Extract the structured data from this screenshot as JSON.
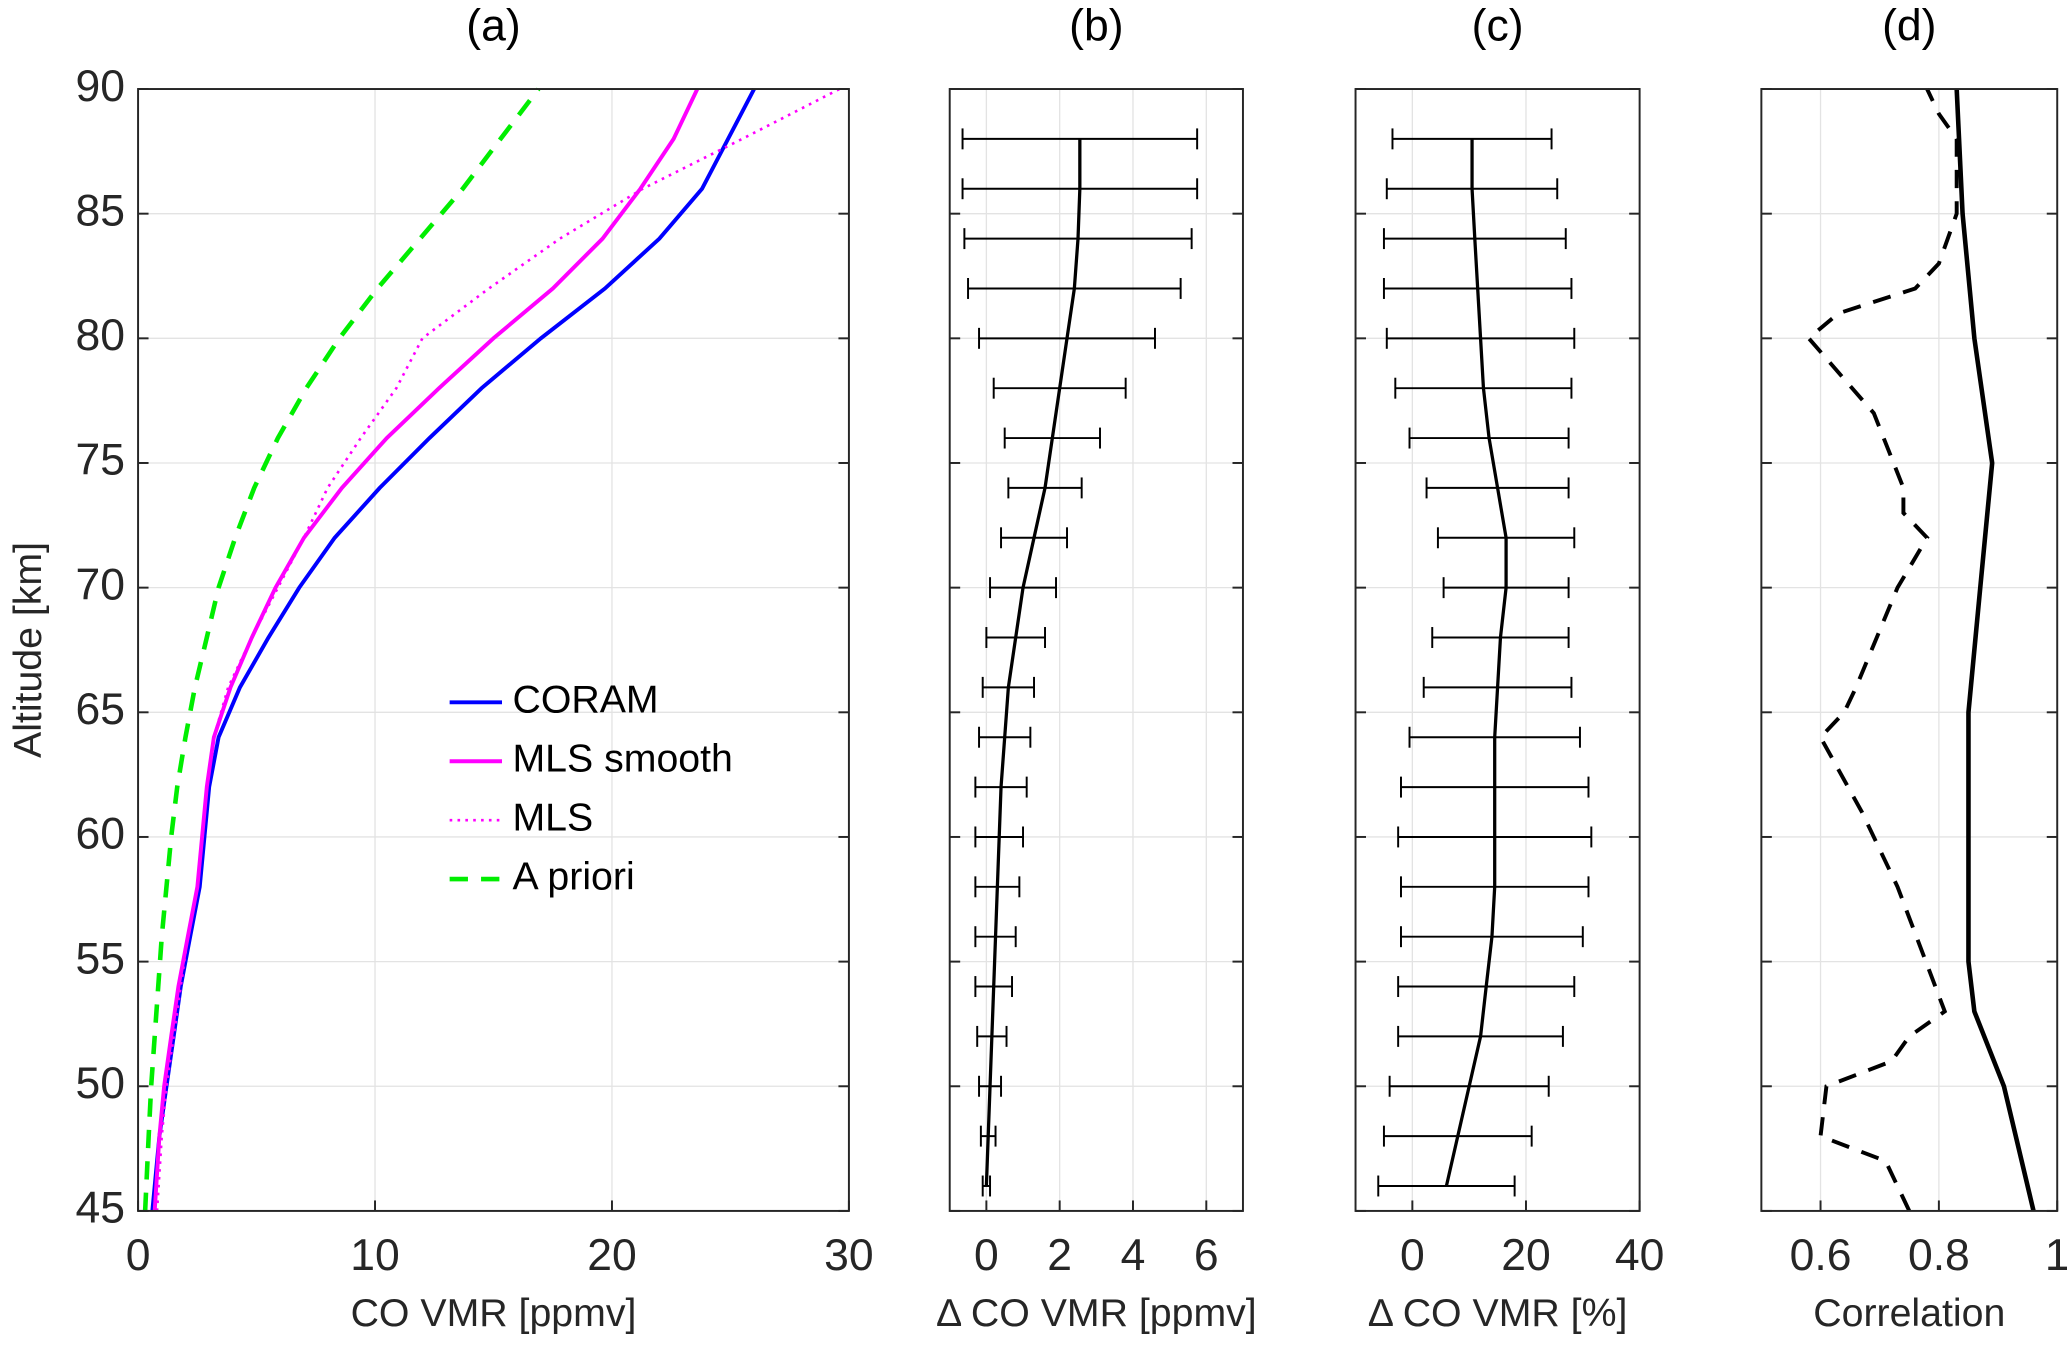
{
  "chart_data": [
    {
      "type": "line",
      "title": "(a)",
      "xlabel": "CO VMR [ppmv]",
      "ylabel": "Altitude [km]",
      "xlim": [
        0,
        30
      ],
      "xticks": [
        0,
        10,
        20,
        30
      ],
      "ylim": [
        45,
        90
      ],
      "yticks": [
        45,
        50,
        55,
        60,
        65,
        70,
        75,
        80,
        85,
        90
      ],
      "grid": true,
      "legend": "center right",
      "show_ytick_labels": true,
      "series": [
        {
          "name": "CORAM",
          "color": "#0000ff",
          "dash": "solid",
          "linewidth": 3,
          "y": [
            45,
            48,
            50,
            52,
            54,
            56,
            58,
            60,
            62,
            64,
            66,
            68,
            70,
            72,
            74,
            76,
            78,
            80,
            82,
            84,
            86,
            88,
            90
          ],
          "values": [
            0.6,
            0.9,
            1.2,
            1.5,
            1.8,
            2.2,
            2.6,
            2.8,
            3.0,
            3.4,
            4.3,
            5.5,
            6.8,
            8.3,
            10.2,
            12.3,
            14.5,
            17,
            19.7,
            22,
            23.8,
            24.9,
            26
          ]
        },
        {
          "name": "MLS smooth",
          "color": "#ff00ff",
          "dash": "solid",
          "linewidth": 3,
          "y": [
            45,
            48,
            50,
            52,
            54,
            56,
            58,
            60,
            62,
            64,
            66,
            68,
            70,
            72,
            74,
            76,
            78,
            80,
            82,
            84,
            86,
            88,
            90
          ],
          "values": [
            0.7,
            0.9,
            1.1,
            1.4,
            1.7,
            2.1,
            2.5,
            2.7,
            2.9,
            3.2,
            3.9,
            4.8,
            5.8,
            7.0,
            8.6,
            10.5,
            12.7,
            15,
            17.5,
            19.6,
            21.2,
            22.6,
            23.6
          ]
        },
        {
          "name": "MLS",
          "color": "#ff00ff",
          "dash": "dotted",
          "linewidth": 2,
          "y": [
            45,
            48,
            50,
            52,
            54,
            56,
            58,
            60,
            62,
            64,
            66,
            68,
            70,
            72,
            74,
            76,
            78,
            80,
            82,
            84,
            86,
            88,
            90
          ],
          "values": [
            0.8,
            1.0,
            1.2,
            1.5,
            1.8,
            2.1,
            2.5,
            2.7,
            2.9,
            3.2,
            3.8,
            4.8,
            5.9,
            7.0,
            8.0,
            9.4,
            10.9,
            12,
            14.8,
            17.8,
            21.3,
            25.5,
            29.6
          ]
        },
        {
          "name": "A priori",
          "color": "#00ee00",
          "dash": "dashed",
          "linewidth": 3.5,
          "y": [
            45,
            48,
            50,
            52,
            54,
            56,
            58,
            60,
            62,
            64,
            66,
            68,
            70,
            72,
            74,
            76,
            78,
            80,
            82,
            84,
            86,
            88,
            90
          ],
          "values": [
            0.3,
            0.45,
            0.55,
            0.7,
            0.85,
            1.0,
            1.2,
            1.4,
            1.65,
            2.0,
            2.4,
            2.9,
            3.4,
            4.1,
            4.9,
            5.9,
            7.1,
            8.5,
            10.1,
            11.9,
            13.7,
            15.3,
            16.9
          ]
        }
      ]
    },
    {
      "type": "line",
      "title": "(b)",
      "xlabel": "Δ CO VMR [ppmv]",
      "xlim": [
        -1,
        7
      ],
      "xticks": [
        0,
        2,
        4,
        6
      ],
      "ylim": [
        45,
        90
      ],
      "yticks": [
        45,
        50,
        55,
        60,
        65,
        70,
        75,
        80,
        85,
        90
      ],
      "grid": true,
      "show_ytick_labels": false,
      "series": [
        {
          "color": "#000000",
          "dash": "solid",
          "linewidth": 2.5,
          "y": [
            46,
            48,
            50,
            52,
            54,
            56,
            58,
            60,
            62,
            64,
            66,
            68,
            70,
            72,
            74,
            76,
            78,
            80,
            82,
            84,
            86,
            88
          ],
          "values": [
            0.0,
            0.05,
            0.1,
            0.15,
            0.2,
            0.25,
            0.3,
            0.35,
            0.4,
            0.5,
            0.6,
            0.8,
            1.0,
            1.3,
            1.6,
            1.8,
            2.0,
            2.2,
            2.4,
            2.5,
            2.55,
            2.55
          ],
          "errors": [
            0.1,
            0.2,
            0.3,
            0.4,
            0.5,
            0.55,
            0.6,
            0.65,
            0.7,
            0.7,
            0.7,
            0.8,
            0.9,
            0.9,
            1.0,
            1.3,
            1.8,
            2.4,
            2.9,
            3.1,
            3.2,
            3.2
          ]
        }
      ]
    },
    {
      "type": "line",
      "title": "(c)",
      "xlabel": "Δ CO VMR [%]",
      "xlim": [
        -10,
        40
      ],
      "xticks": [
        0,
        20,
        40
      ],
      "ylim": [
        45,
        90
      ],
      "yticks": [
        45,
        50,
        55,
        60,
        65,
        70,
        75,
        80,
        85,
        90
      ],
      "grid": true,
      "show_ytick_labels": false,
      "series": [
        {
          "color": "#000000",
          "dash": "solid",
          "linewidth": 2.5,
          "y": [
            46,
            48,
            50,
            52,
            54,
            56,
            58,
            60,
            62,
            64,
            66,
            68,
            70,
            72,
            74,
            76,
            78,
            80,
            82,
            84,
            86,
            88
          ],
          "values": [
            6,
            8,
            10,
            12,
            13,
            14,
            14.5,
            14.5,
            14.5,
            14.5,
            15,
            15.5,
            16.5,
            16.5,
            15,
            13.5,
            12.5,
            12,
            11.5,
            11,
            10.5,
            10.5
          ],
          "errors": [
            12,
            13,
            14,
            14.5,
            15.5,
            16,
            16.5,
            17,
            16.5,
            15,
            13,
            12,
            11,
            12,
            12.5,
            14,
            15.5,
            16.5,
            16.5,
            16,
            15,
            14
          ]
        }
      ]
    },
    {
      "type": "line",
      "title": "(d)",
      "xlabel": "Correlation",
      "xlim": [
        0.5,
        1
      ],
      "xticks": [
        0.6,
        0.8,
        1
      ],
      "ylim": [
        45,
        90
      ],
      "yticks": [
        45,
        50,
        55,
        60,
        65,
        70,
        75,
        80,
        85,
        90
      ],
      "grid": true,
      "show_ytick_labels": false,
      "series": [
        {
          "color": "#000000",
          "dash": "solid",
          "linewidth": 3.5,
          "y": [
            45,
            50,
            53,
            55,
            60,
            65,
            70,
            75,
            80,
            85,
            90
          ],
          "values": [
            0.96,
            0.91,
            0.86,
            0.85,
            0.85,
            0.85,
            0.87,
            0.89,
            0.86,
            0.84,
            0.83
          ]
        },
        {
          "color": "#000000",
          "dash": "dashed",
          "linewidth": 3,
          "y": [
            45,
            47,
            48,
            50,
            51,
            52,
            53,
            58,
            61,
            64,
            65,
            66,
            70,
            72,
            73,
            74,
            77,
            80,
            81,
            82,
            83,
            85,
            88,
            89,
            90
          ],
          "values": [
            0.75,
            0.71,
            0.6,
            0.61,
            0.72,
            0.75,
            0.81,
            0.73,
            0.67,
            0.6,
            0.64,
            0.66,
            0.73,
            0.78,
            0.74,
            0.74,
            0.69,
            0.58,
            0.63,
            0.76,
            0.8,
            0.83,
            0.83,
            0.8,
            0.78
          ]
        }
      ]
    }
  ]
}
